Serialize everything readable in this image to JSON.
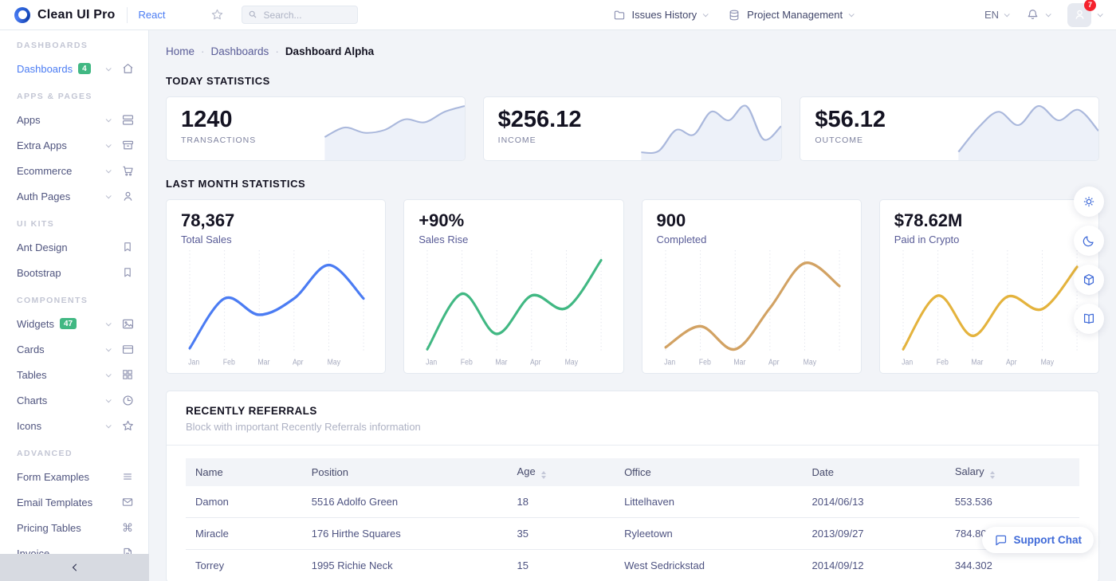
{
  "topbar": {
    "logo_text": "Clean UI Pro",
    "edition_label": "React",
    "search": {
      "placeholder": "Search..."
    },
    "menus": [
      {
        "label": "Issues History"
      },
      {
        "label": "Project Management"
      }
    ],
    "language_label": "EN",
    "notification_badge": "7"
  },
  "sidebar": {
    "sections": [
      {
        "header": "DASHBOARDS",
        "items": [
          {
            "label": "Dashboards",
            "badge": "4"
          }
        ]
      },
      {
        "header": "APPS & PAGES",
        "items": [
          {
            "label": "Apps"
          },
          {
            "label": "Extra Apps"
          },
          {
            "label": "Ecommerce"
          },
          {
            "label": "Auth Pages"
          }
        ]
      },
      {
        "header": "UI KITS",
        "items": [
          {
            "label": "Ant Design"
          },
          {
            "label": "Bootstrap"
          }
        ]
      },
      {
        "header": "COMPONENTS",
        "items": [
          {
            "label": "Widgets",
            "badge": "47"
          },
          {
            "label": "Cards"
          },
          {
            "label": "Tables"
          },
          {
            "label": "Charts"
          },
          {
            "label": "Icons"
          }
        ]
      },
      {
        "header": "ADVANCED",
        "items": [
          {
            "label": "Form Examples"
          },
          {
            "label": "Email Templates"
          },
          {
            "label": "Pricing Tables"
          },
          {
            "label": "Invoice"
          }
        ]
      }
    ]
  },
  "breadcrumb": {
    "home": "Home",
    "section": "Dashboards",
    "current": "Dashboard Alpha",
    "separator": "·"
  },
  "section_titles": {
    "today": "TODAY STATISTICS",
    "last_month": "LAST MONTH STATISTICS"
  },
  "today_stats": [
    {
      "value": "1240",
      "label": "TRANSACTIONS"
    },
    {
      "value": "$256.12",
      "label": "INCOME"
    },
    {
      "value": "$56.12",
      "label": "OUTCOME"
    }
  ],
  "referrals": {
    "title": "RECENTLY REFERRALS",
    "subtitle": "Block with important Recently Referrals information",
    "columns": [
      {
        "label": "Name"
      },
      {
        "label": "Position"
      },
      {
        "label": "Age"
      },
      {
        "label": "Office"
      },
      {
        "label": "Date"
      },
      {
        "label": "Salary"
      }
    ],
    "rows": [
      {
        "name": "Damon",
        "position": "5516 Adolfo Green",
        "age": "18",
        "office": "Littelhaven",
        "date": "2014/06/13",
        "salary": "553.536"
      },
      {
        "name": "Miracle",
        "position": "176 Hirthe Squares",
        "age": "35",
        "office": "Ryleetown",
        "date": "2013/09/27",
        "salary": "784.802"
      },
      {
        "name": "Torrey",
        "position": "1995 Richie Neck",
        "age": "15",
        "office": "West Sedrickstad",
        "date": "2014/09/12",
        "salary": "344.302"
      }
    ]
  },
  "floating": {
    "support_chat_label": "Support Chat"
  },
  "colors": {
    "primary": "#4b7cf3",
    "badge_green": "#41b883",
    "badge_red": "#f5222d",
    "chart_blue": "#4b7cf3",
    "chart_green": "#41b883",
    "chart_tan": "#d2a263",
    "chart_gold": "#e4b33d"
  },
  "chart_data": [
    {
      "type": "area",
      "card": "TRANSACTIONS",
      "values": [
        35,
        55,
        44,
        50,
        72,
        66,
        88,
        100
      ],
      "color": "#aab8dc",
      "fill": "#edf1f9"
    },
    {
      "type": "area",
      "card": "INCOME",
      "values": [
        3,
        6,
        50,
        40,
        88,
        70,
        100,
        30,
        58
      ],
      "color": "#aab8dc",
      "fill": "#edf1f9"
    },
    {
      "type": "area",
      "card": "OUTCOME",
      "values": [
        4,
        55,
        88,
        60,
        100,
        70,
        92,
        48
      ],
      "color": "#aab8dc",
      "fill": "#edf1f9"
    },
    {
      "type": "line",
      "headline": "78,367",
      "title": "Total Sales",
      "color": "#4b7cf3",
      "categories": [
        "Jan",
        "Feb",
        "Mar",
        "Apr",
        "May"
      ],
      "values": [
        3,
        55,
        38,
        55,
        90,
        55
      ],
      "ylim": [
        0,
        100
      ],
      "grid": "vertical-dotted"
    },
    {
      "type": "line",
      "headline": "+90%",
      "title": "Sales Rise",
      "color": "#41b883",
      "categories": [
        "Jan",
        "Feb",
        "Mar",
        "Apr",
        "May"
      ],
      "values": [
        2,
        60,
        18,
        58,
        45,
        95
      ],
      "ylim": [
        0,
        100
      ],
      "grid": "vertical-dotted"
    },
    {
      "type": "line",
      "headline": "900",
      "title": "Completed",
      "color": "#d2a263",
      "categories": [
        "Jan",
        "Feb",
        "Mar",
        "Apr",
        "May"
      ],
      "values": [
        4,
        26,
        2,
        45,
        92,
        68
      ],
      "ylim": [
        0,
        100
      ],
      "grid": "vertical-dotted"
    },
    {
      "type": "line",
      "headline": "$78.62M",
      "title": "Paid in Crypto",
      "color": "#e4b33d",
      "categories": [
        "Jan",
        "Feb",
        "Mar",
        "Apr",
        "May"
      ],
      "values": [
        2,
        58,
        16,
        57,
        44,
        88
      ],
      "ylim": [
        0,
        100
      ],
      "grid": "vertical-dotted"
    }
  ]
}
